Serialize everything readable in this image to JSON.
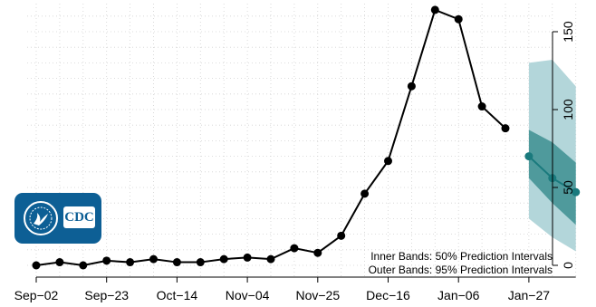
{
  "chart_data": {
    "type": "line",
    "x_tick_labels": [
      "Sep−02",
      "Sep−23",
      "Oct−14",
      "Nov−04",
      "Nov−25",
      "Dec−16",
      "Jan−06",
      "Jan−27"
    ],
    "y_ticks": [
      0,
      50,
      100,
      150
    ],
    "ylim": [
      -3,
      165
    ],
    "y_axis_side": "right",
    "grid": true,
    "observed": {
      "x": [
        "Sep-02",
        "Sep-09",
        "Sep-16",
        "Sep-23",
        "Sep-30",
        "Oct-07",
        "Oct-14",
        "Oct-21",
        "Oct-28",
        "Nov-04",
        "Nov-11",
        "Nov-18",
        "Nov-25",
        "Dec-02",
        "Dec-09",
        "Dec-16",
        "Dec-23",
        "Dec-30",
        "Jan-06",
        "Jan-13",
        "Jan-20"
      ],
      "values": [
        0,
        2,
        0,
        3,
        2,
        4,
        2,
        2,
        4,
        5,
        4,
        11,
        8,
        19,
        46,
        67,
        115,
        164,
        158,
        102,
        88
      ],
      "color": "#000000"
    },
    "forecast": {
      "x": [
        "Jan-27",
        "Feb-03",
        "Feb-10"
      ],
      "median": [
        70,
        56,
        47
      ],
      "pi50_lower": [
        56,
        40,
        26
      ],
      "pi50_upper": [
        87,
        79,
        66
      ],
      "pi95_lower": [
        30,
        18,
        9
      ],
      "pi95_upper": [
        130,
        132,
        115
      ],
      "color": "#1a7a7d",
      "band_outer_color": "#b3d6da",
      "band_inner_color": "#4f9a9c"
    },
    "annotations": [
      "Inner Bands: 50% Prediction Intervals",
      "Outer Bands: 95% Prediction Intervals"
    ]
  },
  "logo": {
    "text": "CDC",
    "seal_icon": "hhs-seal-icon"
  }
}
